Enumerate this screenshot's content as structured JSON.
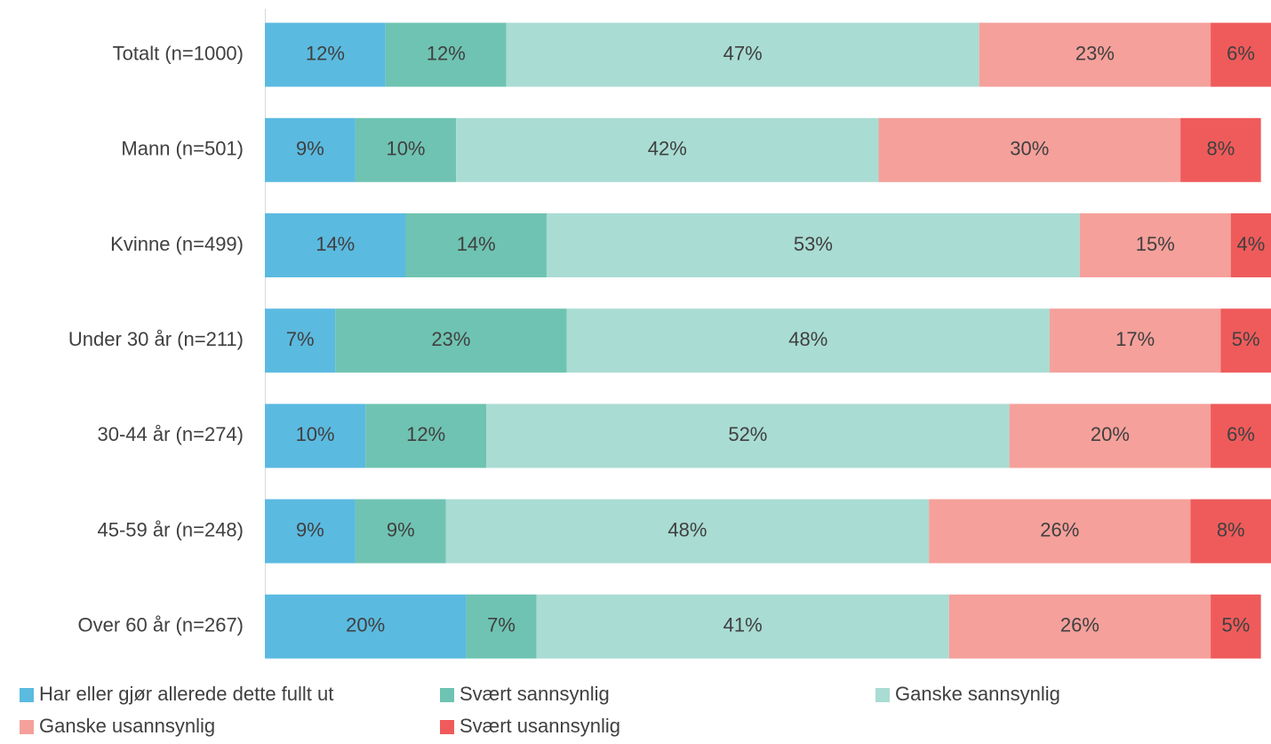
{
  "chart_data": {
    "type": "stacked_barh",
    "categories": [
      "Totalt (n=1000)",
      "Mann (n=501)",
      "Kvinne (n=499)",
      "Under 30 år (n=211)",
      "30-44 år (n=274)",
      "45-59 år (n=248)",
      "Over 60 år (n=267)"
    ],
    "xlim": [
      0,
      100
    ],
    "legend": "bottom",
    "series": [
      {
        "name": "Har eller gjør allerede dette fullt ut",
        "color": "#5bbae0",
        "values": [
          12,
          9,
          14,
          7,
          10,
          9,
          20
        ],
        "value_labels": [
          "12%",
          "9%",
          "14%",
          "7%",
          "10%",
          "9%",
          "20%"
        ]
      },
      {
        "name": "Svært sannsynlig",
        "color": "#6fc3b2",
        "values": [
          12,
          10,
          14,
          23,
          12,
          9,
          7
        ],
        "value_labels": [
          "12%",
          "10%",
          "14%",
          "23%",
          "12%",
          "9%",
          "7%"
        ]
      },
      {
        "name": "Ganske sannsynlig",
        "color": "#a9dcd3",
        "values": [
          47,
          42,
          53,
          48,
          52,
          48,
          41
        ],
        "value_labels": [
          "47%",
          "42%",
          "53%",
          "48%",
          "52%",
          "48%",
          "41%"
        ]
      },
      {
        "name": "Ganske usannsynlig",
        "color": "#f5a09b",
        "values": [
          23,
          30,
          15,
          17,
          20,
          26,
          26
        ],
        "value_labels": [
          "23%",
          "30%",
          "15%",
          "17%",
          "20%",
          "26%",
          "26%"
        ]
      },
      {
        "name": "Svært usannsynlig",
        "color": "#ef5b5b",
        "values": [
          6,
          8,
          4,
          5,
          6,
          8,
          5
        ],
        "value_labels": [
          "6%",
          "8%",
          "4%",
          "5%",
          "6%",
          "8%",
          "5%"
        ]
      }
    ]
  }
}
